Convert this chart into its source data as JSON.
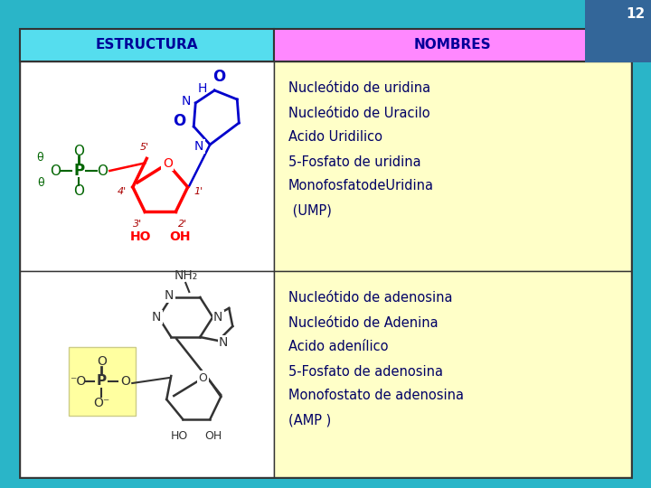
{
  "title_num": "12",
  "col1_header": "ESTRUCTURA",
  "col2_header": "NOMBRES",
  "row1_names": [
    "Nucleótido de uridina",
    "Nucleótido de Uracilo",
    "Acido Uridilico",
    "5-Fosfato de uridina",
    "MonofosfatodeUridina",
    " (UMP)"
  ],
  "row2_names": [
    "Nucleótido de adenosina",
    "Nucleótido de Adenina",
    "Acido adenílico",
    "5-Fosfato de adenosina",
    "Monofostato de adenosina",
    "(AMP )"
  ],
  "bg_color": "#2ab5c8",
  "table_bg": "#ffffff",
  "header1_bg": "#55ddee",
  "header2_bg": "#ff88ff",
  "cell_bg_yellow": "#ffffc8",
  "cell_bg_white": "#ffffff",
  "header_text_color": "#000099",
  "names_text_color": "#000066",
  "border_color": "#333333",
  "title_bg": "#336699",
  "figsize": [
    7.2,
    5.4
  ],
  "dpi": 100
}
